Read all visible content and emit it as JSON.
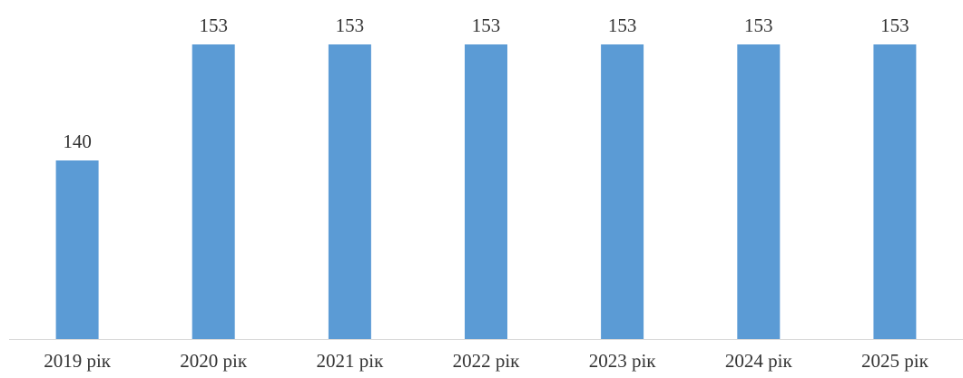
{
  "chart_data": {
    "type": "bar",
    "categories": [
      "2019 рік",
      "2020 рік",
      "2021 рік",
      "2022 рік",
      "2023 рік",
      "2024 рік",
      "2025 рік"
    ],
    "values": [
      140,
      153,
      153,
      153,
      153,
      153,
      153
    ],
    "value_labels": [
      "140",
      "153",
      "153",
      "153",
      "153",
      "153",
      "153"
    ],
    "title": "",
    "xlabel": "",
    "ylabel": "",
    "ylim": [
      120,
      153
    ],
    "grid": false,
    "legend": "none",
    "bar_color": "#5b9bd5",
    "axis_color": "#d9d9d9",
    "text_color": "#333333"
  }
}
